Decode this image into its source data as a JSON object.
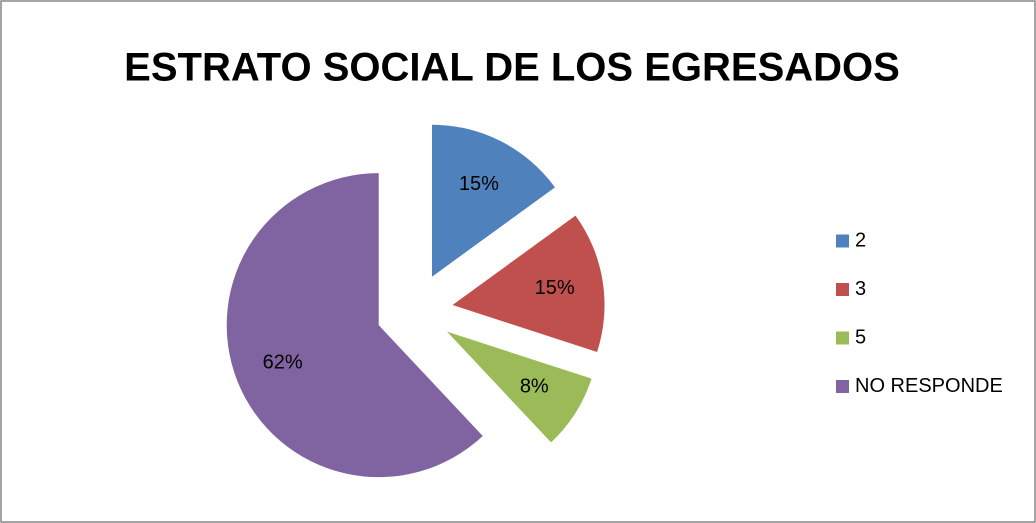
{
  "chart_data": {
    "type": "pie",
    "title": "ESTRATO SOCIAL DE LOS EGRESADOS",
    "categories": [
      "2",
      "3",
      "5",
      "NO RESPONDE"
    ],
    "values": [
      15,
      15,
      8,
      62
    ],
    "value_labels": [
      "15%",
      "15%",
      "8%",
      "62%"
    ],
    "colors": [
      "#4f81bd",
      "#c0504d",
      "#9bbb59",
      "#8064a2"
    ],
    "legend": "right"
  }
}
